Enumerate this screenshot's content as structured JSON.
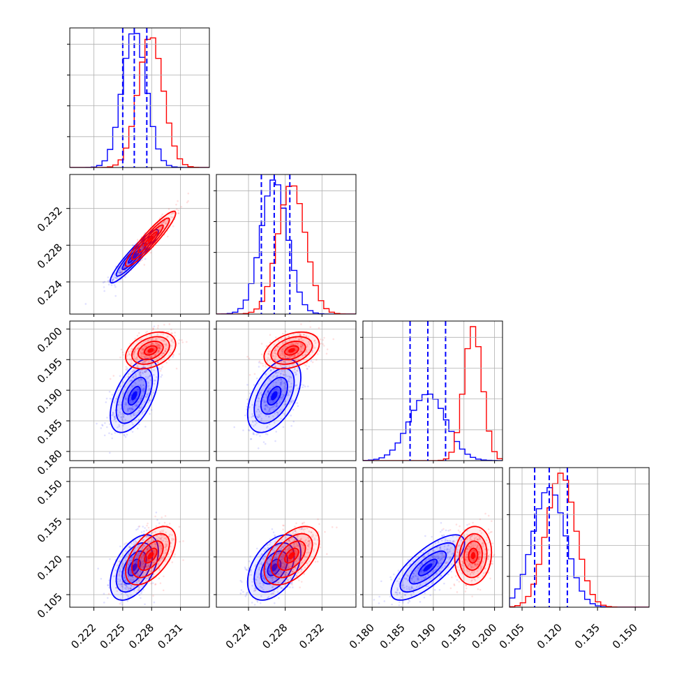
{
  "chart_data": {
    "type": "corner",
    "parameters": 4,
    "grid": true,
    "ranges": [
      [
        0.2195,
        0.234
      ],
      [
        0.2205,
        0.2357
      ],
      [
        0.1785,
        0.2013
      ],
      [
        0.1,
        0.1555
      ]
    ],
    "tick_labels": [
      [
        "0.222",
        "0.225",
        "0.228",
        "0.231"
      ],
      [
        "0.224",
        "0.228",
        "0.232"
      ],
      [
        "0.180",
        "0.185",
        "0.190",
        "0.195",
        "0.200"
      ],
      [
        "0.105",
        "0.120",
        "0.135",
        "0.150"
      ]
    ],
    "tick_values": [
      [
        0.222,
        0.225,
        0.228,
        0.231
      ],
      [
        0.224,
        0.228,
        0.232
      ],
      [
        0.18,
        0.185,
        0.19,
        0.195,
        0.2
      ],
      [
        0.105,
        0.12,
        0.135,
        0.15
      ]
    ],
    "series": [
      {
        "color": "#0000ff",
        "means": [
          0.2262,
          0.2268,
          0.1891,
          0.1158
        ],
        "sigmas": [
          0.00125,
          0.00145,
          0.003,
          0.0065
        ],
        "correlations": {
          "0-1": 0.93,
          "0-2": 0.55,
          "0-3": 0.5,
          "1-2": 0.5,
          "1-3": 0.45,
          "2-3": 0.75
        },
        "quantiles": [
          [
            0.225,
            0.2262,
            0.2275
          ],
          [
            0.2254,
            0.2268,
            0.2285
          ],
          [
            0.1862,
            0.1891,
            0.192
          ],
          [
            0.11,
            0.1158,
            0.123
          ]
        ]
      },
      {
        "color": "#ff0000",
        "means": [
          0.2279,
          0.2287,
          0.1965,
          0.1205
        ],
        "sigmas": [
          0.0013,
          0.0015,
          0.0015,
          0.0058
        ],
        "correlations": {
          "0-1": 0.93,
          "0-2": 0.35,
          "0-3": 0.55,
          "1-2": 0.35,
          "1-3": 0.5,
          "2-3": 0.1
        },
        "quantiles": [
          [
            0.2266,
            0.2279,
            0.2292
          ],
          [
            0.2272,
            0.2287,
            0.2302
          ],
          [
            0.195,
            0.1965,
            0.198
          ],
          [
            0.1147,
            0.1205,
            0.1263
          ]
        ]
      }
    ]
  }
}
